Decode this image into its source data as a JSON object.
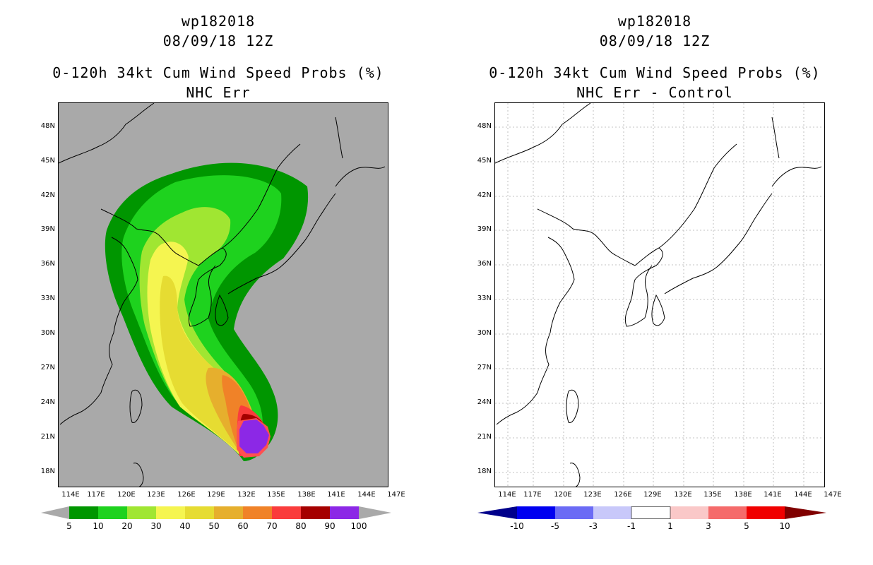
{
  "panels": [
    {
      "title1": "wp182018",
      "title2": "08/09/18 12Z",
      "title3": "0-120h 34kt Cum Wind Speed Probs (%)",
      "title4": "NHC Err",
      "background": "#a9a9a9",
      "lat_labels": [
        "48N",
        "45N",
        "42N",
        "39N",
        "36N",
        "33N",
        "30N",
        "27N",
        "24N",
        "21N",
        "18N"
      ],
      "lon_labels": [
        "114E",
        "117E",
        "120E",
        "123E",
        "126E",
        "129E",
        "132E",
        "135E",
        "138E",
        "141E",
        "144E",
        "147E"
      ],
      "colorbar": {
        "labels": [
          "5",
          "10",
          "20",
          "30",
          "40",
          "50",
          "60",
          "70",
          "80",
          "90",
          "100"
        ],
        "colors": [
          "#009600",
          "#1ed21e",
          "#a0e632",
          "#f5f550",
          "#e6dc32",
          "#e6af2d",
          "#f08228",
          "#fa3c3c",
          "#a50000",
          "#8c28e6"
        ],
        "end_color": "#a9a9a9"
      }
    },
    {
      "title1": "wp182018",
      "title2": "08/09/18 12Z",
      "title3": "0-120h 34kt Cum Wind Speed Probs (%)",
      "title4": "NHC Err - Control",
      "background": "#ffffff",
      "lat_labels": [
        "48N",
        "45N",
        "42N",
        "39N",
        "36N",
        "33N",
        "30N",
        "27N",
        "24N",
        "21N",
        "18N"
      ],
      "lon_labels": [
        "114E",
        "117E",
        "120E",
        "123E",
        "126E",
        "129E",
        "132E",
        "135E",
        "138E",
        "141E",
        "144E",
        "147E"
      ],
      "colorbar": {
        "labels": [
          "-10",
          "-5",
          "-3",
          "-1",
          "1",
          "3",
          "5",
          "10"
        ],
        "colors": [
          "#0000b4",
          "#0000f0",
          "#6b6bf5",
          "#c8c8fa",
          "#ffffff",
          "#fac8c8",
          "#f56b6b",
          "#f00000"
        ],
        "left_color": "#00008b",
        "right_color": "#800000"
      }
    }
  ]
}
